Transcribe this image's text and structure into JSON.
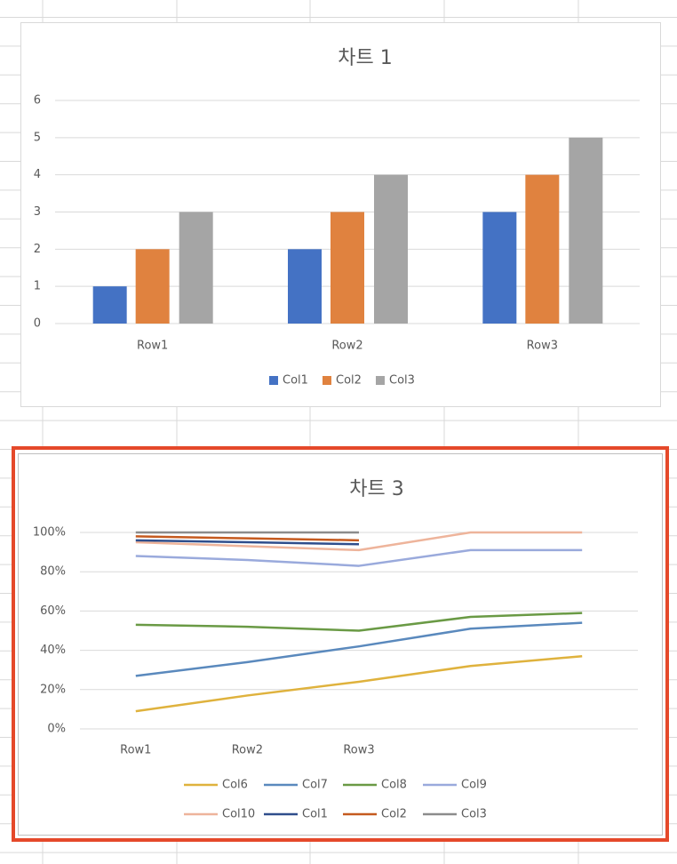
{
  "chart_data": [
    {
      "type": "bar",
      "title": "차트 1",
      "categories": [
        "Row1",
        "Row2",
        "Row3"
      ],
      "series": [
        {
          "name": "Col1",
          "color": "#4472c4",
          "values": [
            1,
            2,
            3
          ]
        },
        {
          "name": "Col2",
          "color": "#e0823f",
          "values": [
            2,
            3,
            4
          ]
        },
        {
          "name": "Col3",
          "color": "#a5a5a5",
          "values": [
            3,
            4,
            5
          ]
        }
      ],
      "ylim": [
        0,
        6
      ],
      "yticks": [
        0,
        1,
        2,
        3,
        4,
        5,
        6
      ],
      "grid": true,
      "legend": "bottom"
    },
    {
      "type": "line",
      "title": "차트 3",
      "categories": [
        "Row1",
        "Row2",
        "Row3",
        null,
        null
      ],
      "series": [
        {
          "name": "Col6",
          "color": "#dfb23d",
          "values": [
            9,
            17,
            24,
            32,
            37
          ]
        },
        {
          "name": "Col7",
          "color": "#5a89bd",
          "values": [
            27,
            34,
            42,
            51,
            54
          ]
        },
        {
          "name": "Col8",
          "color": "#6a9a45",
          "values": [
            53,
            52,
            50,
            57,
            59
          ]
        },
        {
          "name": "Col9",
          "color": "#9aaadc",
          "values": [
            88,
            86,
            83,
            91,
            91
          ]
        },
        {
          "name": "Col10",
          "color": "#eeb49b",
          "values": [
            95,
            93,
            91,
            100,
            100
          ]
        },
        {
          "name": "Col1",
          "color": "#2f4e8c",
          "values": [
            96,
            95,
            94,
            null,
            null
          ]
        },
        {
          "name": "Col2",
          "color": "#c55a1f",
          "values": [
            98,
            97,
            96,
            null,
            null
          ]
        },
        {
          "name": "Col3",
          "color": "#8c8c8c",
          "values": [
            100,
            100,
            100,
            null,
            null
          ]
        }
      ],
      "ylim": [
        0,
        100
      ],
      "yticks": [
        {
          "value": 0,
          "label": "0%"
        },
        {
          "value": 20,
          "label": "20%"
        },
        {
          "value": 40,
          "label": "40%"
        },
        {
          "value": 60,
          "label": "60%"
        },
        {
          "value": 80,
          "label": "80%"
        },
        {
          "value": 100,
          "label": "100%"
        }
      ],
      "grid": true,
      "legend": "bottom"
    }
  ]
}
